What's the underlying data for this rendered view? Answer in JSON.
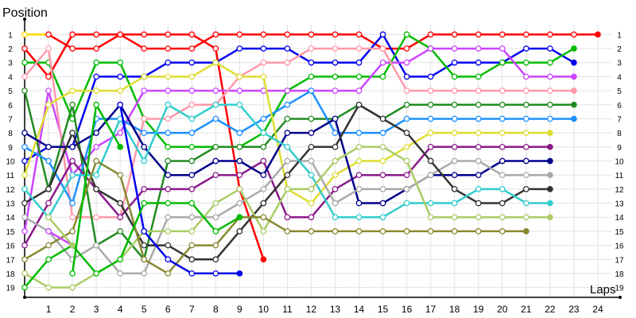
{
  "chart_data": {
    "type": "line",
    "xlabel": "Laps",
    "ylabel": "Position",
    "x_ticks": [
      1,
      2,
      3,
      4,
      5,
      6,
      7,
      8,
      9,
      10,
      11,
      12,
      13,
      14,
      15,
      16,
      17,
      18,
      19,
      20,
      21,
      22,
      23,
      24
    ],
    "y_ticks": [
      1,
      2,
      3,
      4,
      5,
      6,
      7,
      8,
      9,
      10,
      11,
      12,
      13,
      14,
      15,
      16,
      17,
      18,
      19
    ],
    "xlim": [
      0,
      24.6
    ],
    "ylim": [
      0.3,
      19.7
    ],
    "y_inverted": true,
    "grid": true,
    "marker": "circle",
    "series": [
      {
        "color": "#ff0000",
        "x": [
          0,
          1,
          2,
          3,
          4,
          5,
          6,
          7,
          8,
          9,
          10
        ],
        "y": [
          2,
          4,
          1,
          1,
          1,
          1,
          1,
          1,
          2,
          12,
          17
        ]
      },
      {
        "color": "#ffd700",
        "x": [
          0,
          1
        ],
        "y": [
          1,
          1
        ]
      },
      {
        "color": "#ff0000",
        "x": [
          1,
          2,
          3,
          4,
          5,
          6,
          7,
          8,
          9,
          10,
          11,
          12,
          13,
          14,
          15,
          16,
          17,
          18,
          19,
          20,
          21,
          22,
          23,
          24
        ],
        "y": [
          1,
          2,
          2,
          1,
          2,
          2,
          2,
          1,
          1,
          1,
          1,
          1,
          1,
          1,
          2,
          2,
          1,
          1,
          1,
          1,
          1,
          1,
          1,
          1
        ]
      },
      {
        "color": "#0000ee",
        "x": [
          0,
          1,
          2,
          3,
          4,
          5,
          6,
          7,
          8,
          9,
          10,
          11,
          12,
          13,
          14,
          15,
          16,
          17,
          18,
          19,
          20,
          21,
          22,
          23
        ],
        "y": [
          10,
          9,
          9,
          4,
          4,
          4,
          3,
          3,
          3,
          2,
          2,
          2,
          3,
          3,
          3,
          1,
          4,
          4,
          3,
          3,
          3,
          2,
          2,
          3
        ]
      },
      {
        "color": "#00bb00",
        "x": [
          0,
          1,
          2,
          3,
          4,
          5,
          6,
          7,
          8,
          9,
          10,
          11,
          12,
          13,
          14,
          15,
          16,
          17,
          18,
          19,
          20,
          21,
          22,
          23
        ],
        "y": [
          3,
          3,
          7,
          3,
          3,
          7,
          9,
          9,
          9,
          9,
          8,
          5,
          4,
          4,
          4,
          4,
          1,
          2,
          4,
          4,
          3,
          3,
          3,
          2
        ]
      },
      {
        "color": "#cc44ff",
        "x": [
          0,
          1,
          2,
          3,
          4,
          5,
          6,
          7,
          8,
          9,
          10,
          11,
          12,
          13,
          14,
          15,
          16,
          17,
          18,
          19,
          20,
          21,
          22,
          23
        ],
        "y": [
          15,
          5,
          11,
          9,
          8,
          5,
          5,
          5,
          5,
          5,
          5,
          5,
          5,
          5,
          5,
          3,
          3,
          2,
          2,
          2,
          2,
          4,
          4,
          4
        ]
      },
      {
        "color": "#ff99aa",
        "x": [
          0,
          1,
          2,
          3,
          4,
          5,
          6,
          7,
          8,
          9,
          10,
          11,
          12,
          13,
          14,
          15,
          16,
          17,
          18,
          19,
          20,
          21,
          22,
          23
        ],
        "y": [
          4,
          2,
          14,
          14,
          14,
          7,
          7,
          6,
          6,
          4,
          3,
          3,
          2,
          2,
          2,
          2,
          5,
          5,
          5,
          5,
          5,
          5,
          5,
          5
        ]
      },
      {
        "color": "#228b22",
        "x": [
          0,
          1,
          2,
          3,
          4,
          5,
          6,
          7,
          8,
          9,
          10,
          11,
          12,
          13,
          14,
          15,
          16,
          17,
          18,
          19,
          20,
          21,
          22,
          23
        ],
        "y": [
          5,
          12,
          6,
          16,
          15,
          17,
          10,
          10,
          9,
          9,
          9,
          7,
          7,
          7,
          6,
          7,
          6,
          6,
          6,
          6,
          6,
          6,
          6,
          6
        ]
      },
      {
        "color": "#1e90ff",
        "x": [
          0,
          1,
          2,
          3,
          4,
          5,
          6,
          7,
          8,
          9,
          10,
          11,
          12,
          13,
          14,
          15,
          16,
          17,
          18,
          19,
          20,
          21,
          22,
          23
        ],
        "y": [
          9,
          10,
          13,
          7,
          7,
          8,
          8,
          8,
          7,
          8,
          7,
          6,
          5,
          8,
          8,
          8,
          7,
          7,
          7,
          7,
          7,
          7,
          7,
          7
        ]
      },
      {
        "color": "#dddd33",
        "x": [
          0,
          1,
          2,
          3,
          4,
          5,
          6,
          7,
          8,
          9,
          10,
          11,
          12,
          13,
          14,
          15,
          16,
          17,
          18,
          19,
          20,
          21,
          22
        ],
        "y": [
          11,
          6,
          5,
          5,
          5,
          4,
          4,
          4,
          3,
          4,
          4,
          12,
          13,
          11,
          10,
          10,
          9,
          8,
          8,
          8,
          8,
          8,
          8
        ]
      },
      {
        "color": "#8b1a8b",
        "x": [
          0,
          1,
          2,
          3,
          4,
          5,
          6,
          7,
          8,
          9,
          10,
          11,
          12,
          13,
          14,
          15,
          16,
          17,
          18,
          19,
          20,
          21,
          22
        ],
        "y": [
          16,
          13,
          10,
          12,
          14,
          12,
          12,
          12,
          11,
          11,
          10,
          14,
          14,
          12,
          11,
          11,
          11,
          9,
          9,
          9,
          9,
          9,
          9
        ]
      },
      {
        "color": "#00008b",
        "x": [
          0,
          1,
          2,
          3,
          4,
          5,
          6,
          7,
          8,
          9,
          10,
          11,
          12,
          13,
          14,
          15,
          16,
          17,
          18,
          19,
          20,
          21,
          22
        ],
        "y": [
          8,
          9,
          9,
          8,
          6,
          9,
          11,
          11,
          10,
          10,
          11,
          8,
          8,
          7,
          13,
          13,
          12,
          11,
          11,
          11,
          10,
          10,
          10
        ]
      },
      {
        "color": "#aaaaaa",
        "x": [
          0,
          1,
          2,
          3,
          4,
          5,
          6,
          7,
          8,
          9,
          10,
          11,
          12,
          13,
          14,
          15,
          16,
          17,
          18,
          19,
          20,
          21,
          22
        ],
        "y": [
          14,
          15,
          17,
          16,
          18,
          18,
          14,
          14,
          14,
          13,
          12,
          10,
          10,
          13,
          12,
          12,
          12,
          11,
          10,
          10,
          11,
          11,
          11
        ]
      },
      {
        "color": "#333333",
        "x": [
          0,
          1,
          2,
          3,
          4,
          5,
          6,
          7,
          8,
          9,
          10,
          11,
          12,
          13,
          14,
          15,
          16,
          17,
          18,
          19,
          20,
          21,
          22
        ],
        "y": [
          13,
          12,
          8,
          12,
          13,
          16,
          16,
          17,
          17,
          15,
          13,
          11,
          9,
          9,
          6,
          7,
          8,
          10,
          12,
          13,
          13,
          12,
          12
        ]
      },
      {
        "color": "#33cccc",
        "x": [
          0,
          1,
          2,
          3,
          4,
          5,
          6,
          7,
          8,
          9,
          10,
          11,
          12,
          13,
          14,
          15,
          16,
          17,
          18,
          19,
          20,
          21,
          22
        ],
        "y": [
          12,
          14,
          11,
          11,
          7,
          10,
          6,
          7,
          6,
          6,
          8,
          9,
          11,
          14,
          14,
          14,
          13,
          13,
          13,
          12,
          12,
          13,
          13
        ]
      },
      {
        "color": "#aacc66",
        "x": [
          0,
          1,
          2,
          3,
          4,
          5,
          6,
          7,
          8,
          9,
          10,
          11,
          12,
          13,
          14,
          15,
          16,
          17,
          18,
          19,
          20,
          21,
          22
        ],
        "y": [
          18,
          19,
          19,
          18,
          17,
          15,
          15,
          15,
          13,
          12,
          15,
          12,
          12,
          10,
          9,
          9,
          10,
          14,
          14,
          14,
          14,
          14,
          14
        ]
      },
      {
        "color": "#888833",
        "x": [
          0,
          1,
          2,
          3,
          4,
          5,
          6,
          7,
          8,
          9,
          10,
          11,
          12,
          13,
          14,
          15,
          16,
          17,
          18,
          19,
          20,
          21
        ],
        "y": [
          17,
          16,
          15,
          10,
          11,
          17,
          18,
          16,
          16,
          14,
          14,
          15,
          15,
          15,
          15,
          15,
          15,
          15,
          15,
          15,
          15,
          15
        ]
      },
      {
        "color": "#0000ee",
        "x": [
          4,
          5,
          6,
          7,
          8,
          9
        ],
        "y": [
          6,
          15,
          17,
          18,
          18,
          18
        ]
      },
      {
        "color": "#00bb00",
        "x": [
          0,
          1,
          2,
          3,
          4,
          5,
          6,
          7,
          8,
          9
        ],
        "y": [
          19,
          17,
          16,
          18,
          17,
          13,
          13,
          13,
          15,
          14
        ]
      },
      {
        "color": "#cc44ff",
        "x": [
          1,
          2
        ],
        "y": [
          15,
          16
        ]
      },
      {
        "color": "#aacc66",
        "x": [
          1,
          2
        ],
        "y": [
          14,
          16
        ]
      },
      {
        "color": "#00bb00",
        "x": [
          2,
          3,
          4
        ],
        "y": [
          18,
          6,
          9
        ]
      }
    ]
  }
}
